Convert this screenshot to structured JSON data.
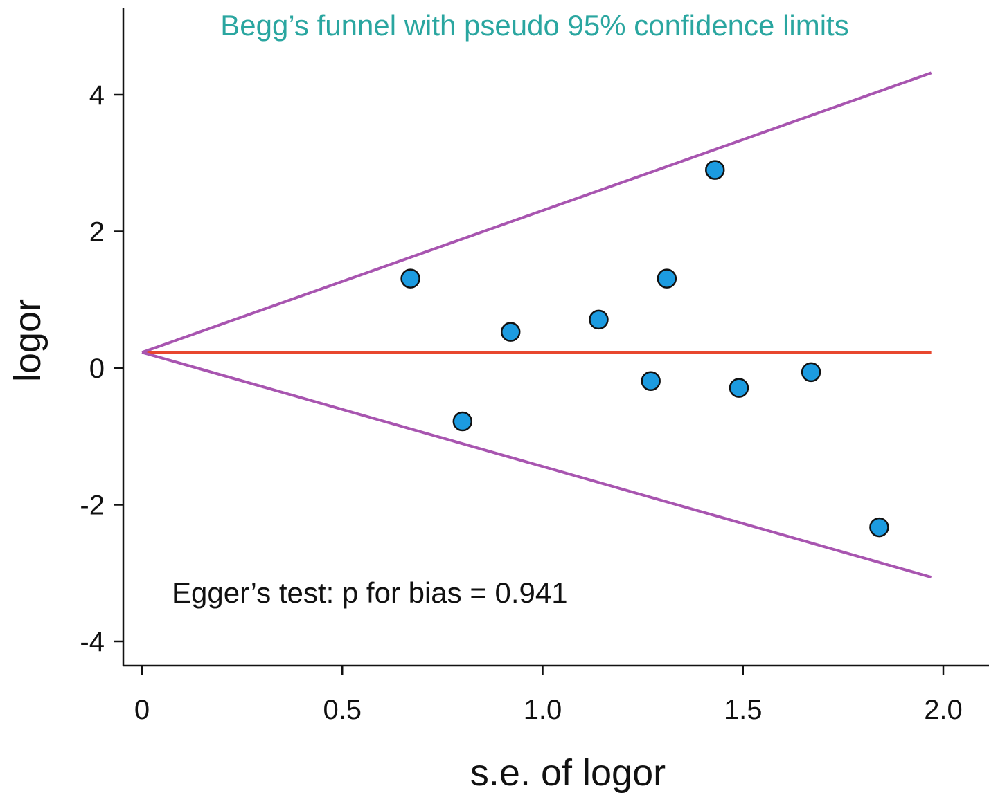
{
  "chart_data": {
    "type": "scatter",
    "title": "Begg’s funnel with pseudo 95% confidence limits",
    "xlabel": "s.e. of logor",
    "ylabel": "logor",
    "xlim": [
      0,
      2.0
    ],
    "ylim": [
      -4,
      4
    ],
    "xticks": [
      {
        "value": 0,
        "label": "0"
      },
      {
        "value": 0.5,
        "label": "0.5"
      },
      {
        "value": 1.0,
        "label": "1.0"
      },
      {
        "value": 1.5,
        "label": "1.5"
      },
      {
        "value": 2.0,
        "label": "2.0"
      }
    ],
    "yticks": [
      {
        "value": 4,
        "label": "4"
      },
      {
        "value": 2,
        "label": "2"
      },
      {
        "value": 0,
        "label": "0"
      },
      {
        "value": -2,
        "label": "-2"
      },
      {
        "value": -4,
        "label": "-4"
      }
    ],
    "points": [
      {
        "x": 0.67,
        "y": 1.31
      },
      {
        "x": 0.8,
        "y": -0.78
      },
      {
        "x": 0.92,
        "y": 0.53
      },
      {
        "x": 1.14,
        "y": 0.71
      },
      {
        "x": 1.27,
        "y": -0.19
      },
      {
        "x": 1.31,
        "y": 1.31
      },
      {
        "x": 1.43,
        "y": 2.9
      },
      {
        "x": 1.49,
        "y": -0.29
      },
      {
        "x": 1.67,
        "y": -0.06
      },
      {
        "x": 1.84,
        "y": -2.33
      }
    ],
    "pooled_estimate": 0.23,
    "line_x_range": [
      0,
      1.97
    ],
    "upper_limit_end": 4.32,
    "lower_limit_end": -3.06,
    "annotation": "Egger’s test: p for bias = 0.941",
    "grid": false,
    "colors": {
      "title": "#2aa6a0",
      "points_fill": "#1c9be0",
      "points_stroke": "#111111",
      "pooled_line": "#e8472f",
      "confidence_limits": "#a855b0",
      "axes": "#111111"
    }
  }
}
